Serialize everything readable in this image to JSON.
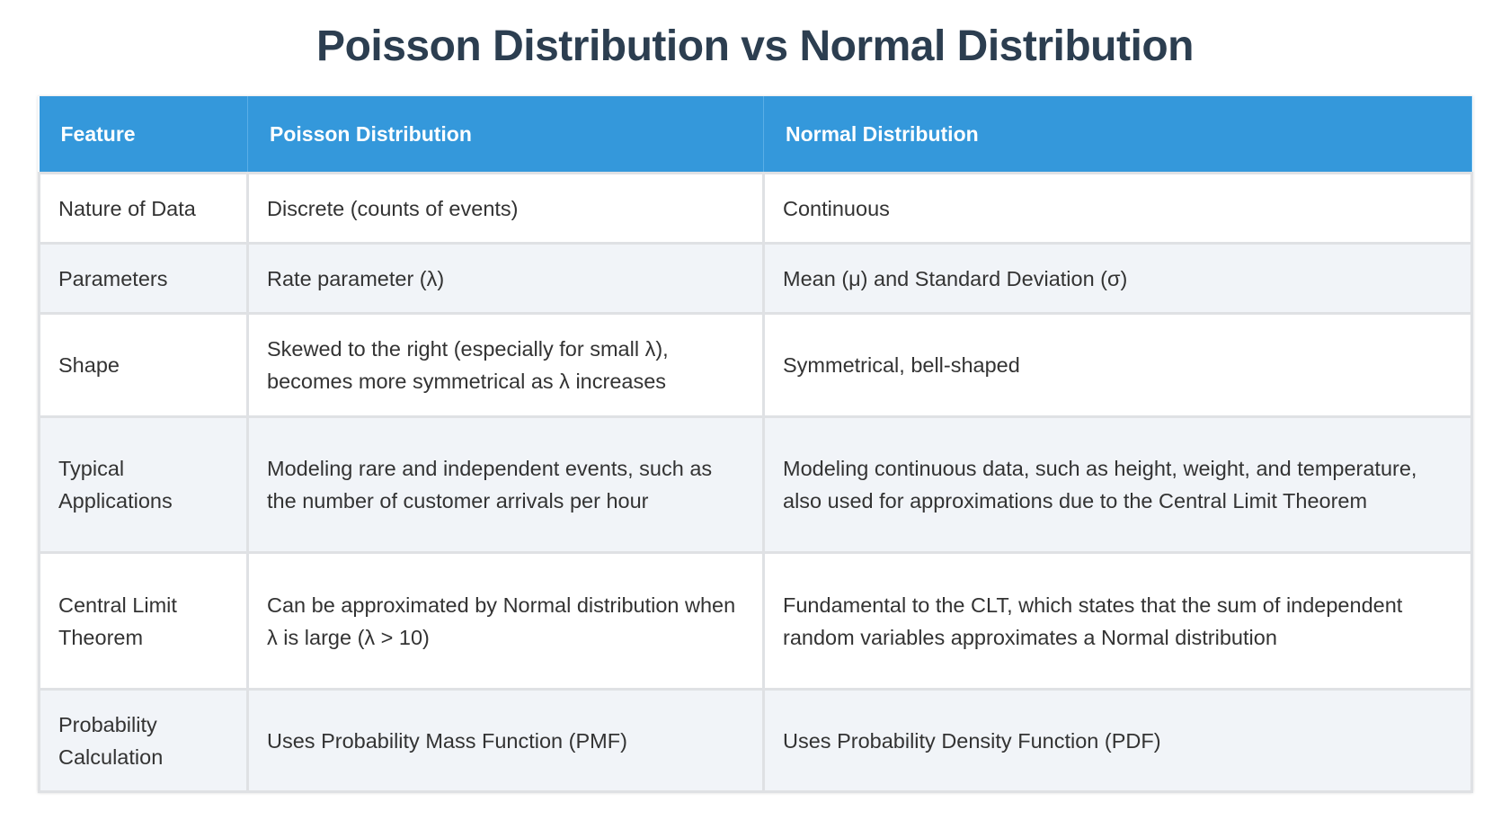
{
  "title": "Poisson Distribution vs Normal Distribution",
  "headers": [
    "Feature",
    "Poisson Distribution",
    "Normal Distribution"
  ],
  "rows": [
    [
      "Nature of Data",
      "Discrete (counts of events)",
      "Continuous"
    ],
    [
      "Parameters",
      "Rate parameter (λ)",
      "Mean (μ) and Standard Deviation (σ)"
    ],
    [
      "Shape",
      "Skewed to the right (especially for small λ), becomes more symmetrical as λ increases",
      "Symmetrical, bell-shaped"
    ],
    [
      "Typical Applications",
      "Modeling rare and independent events, such as the number of customer arrivals per hour",
      "Modeling continuous data, such as height, weight, and temperature, also used for approximations due to the Central Limit Theorem"
    ],
    [
      "Central Limit Theorem",
      "Can be approximated by Normal distribution when λ is large (λ > 10)",
      "Fundamental to the CLT, which states that the sum of independent random variables approximates a Normal distribution"
    ],
    [
      "Probability Calculation",
      "Uses Probability Mass Function (PMF)",
      "Uses Probability Density Function (PDF)"
    ]
  ],
  "colors": {
    "header_bg": "#3498db",
    "title": "#2c3e50",
    "alt_row": "#f1f4f8"
  }
}
